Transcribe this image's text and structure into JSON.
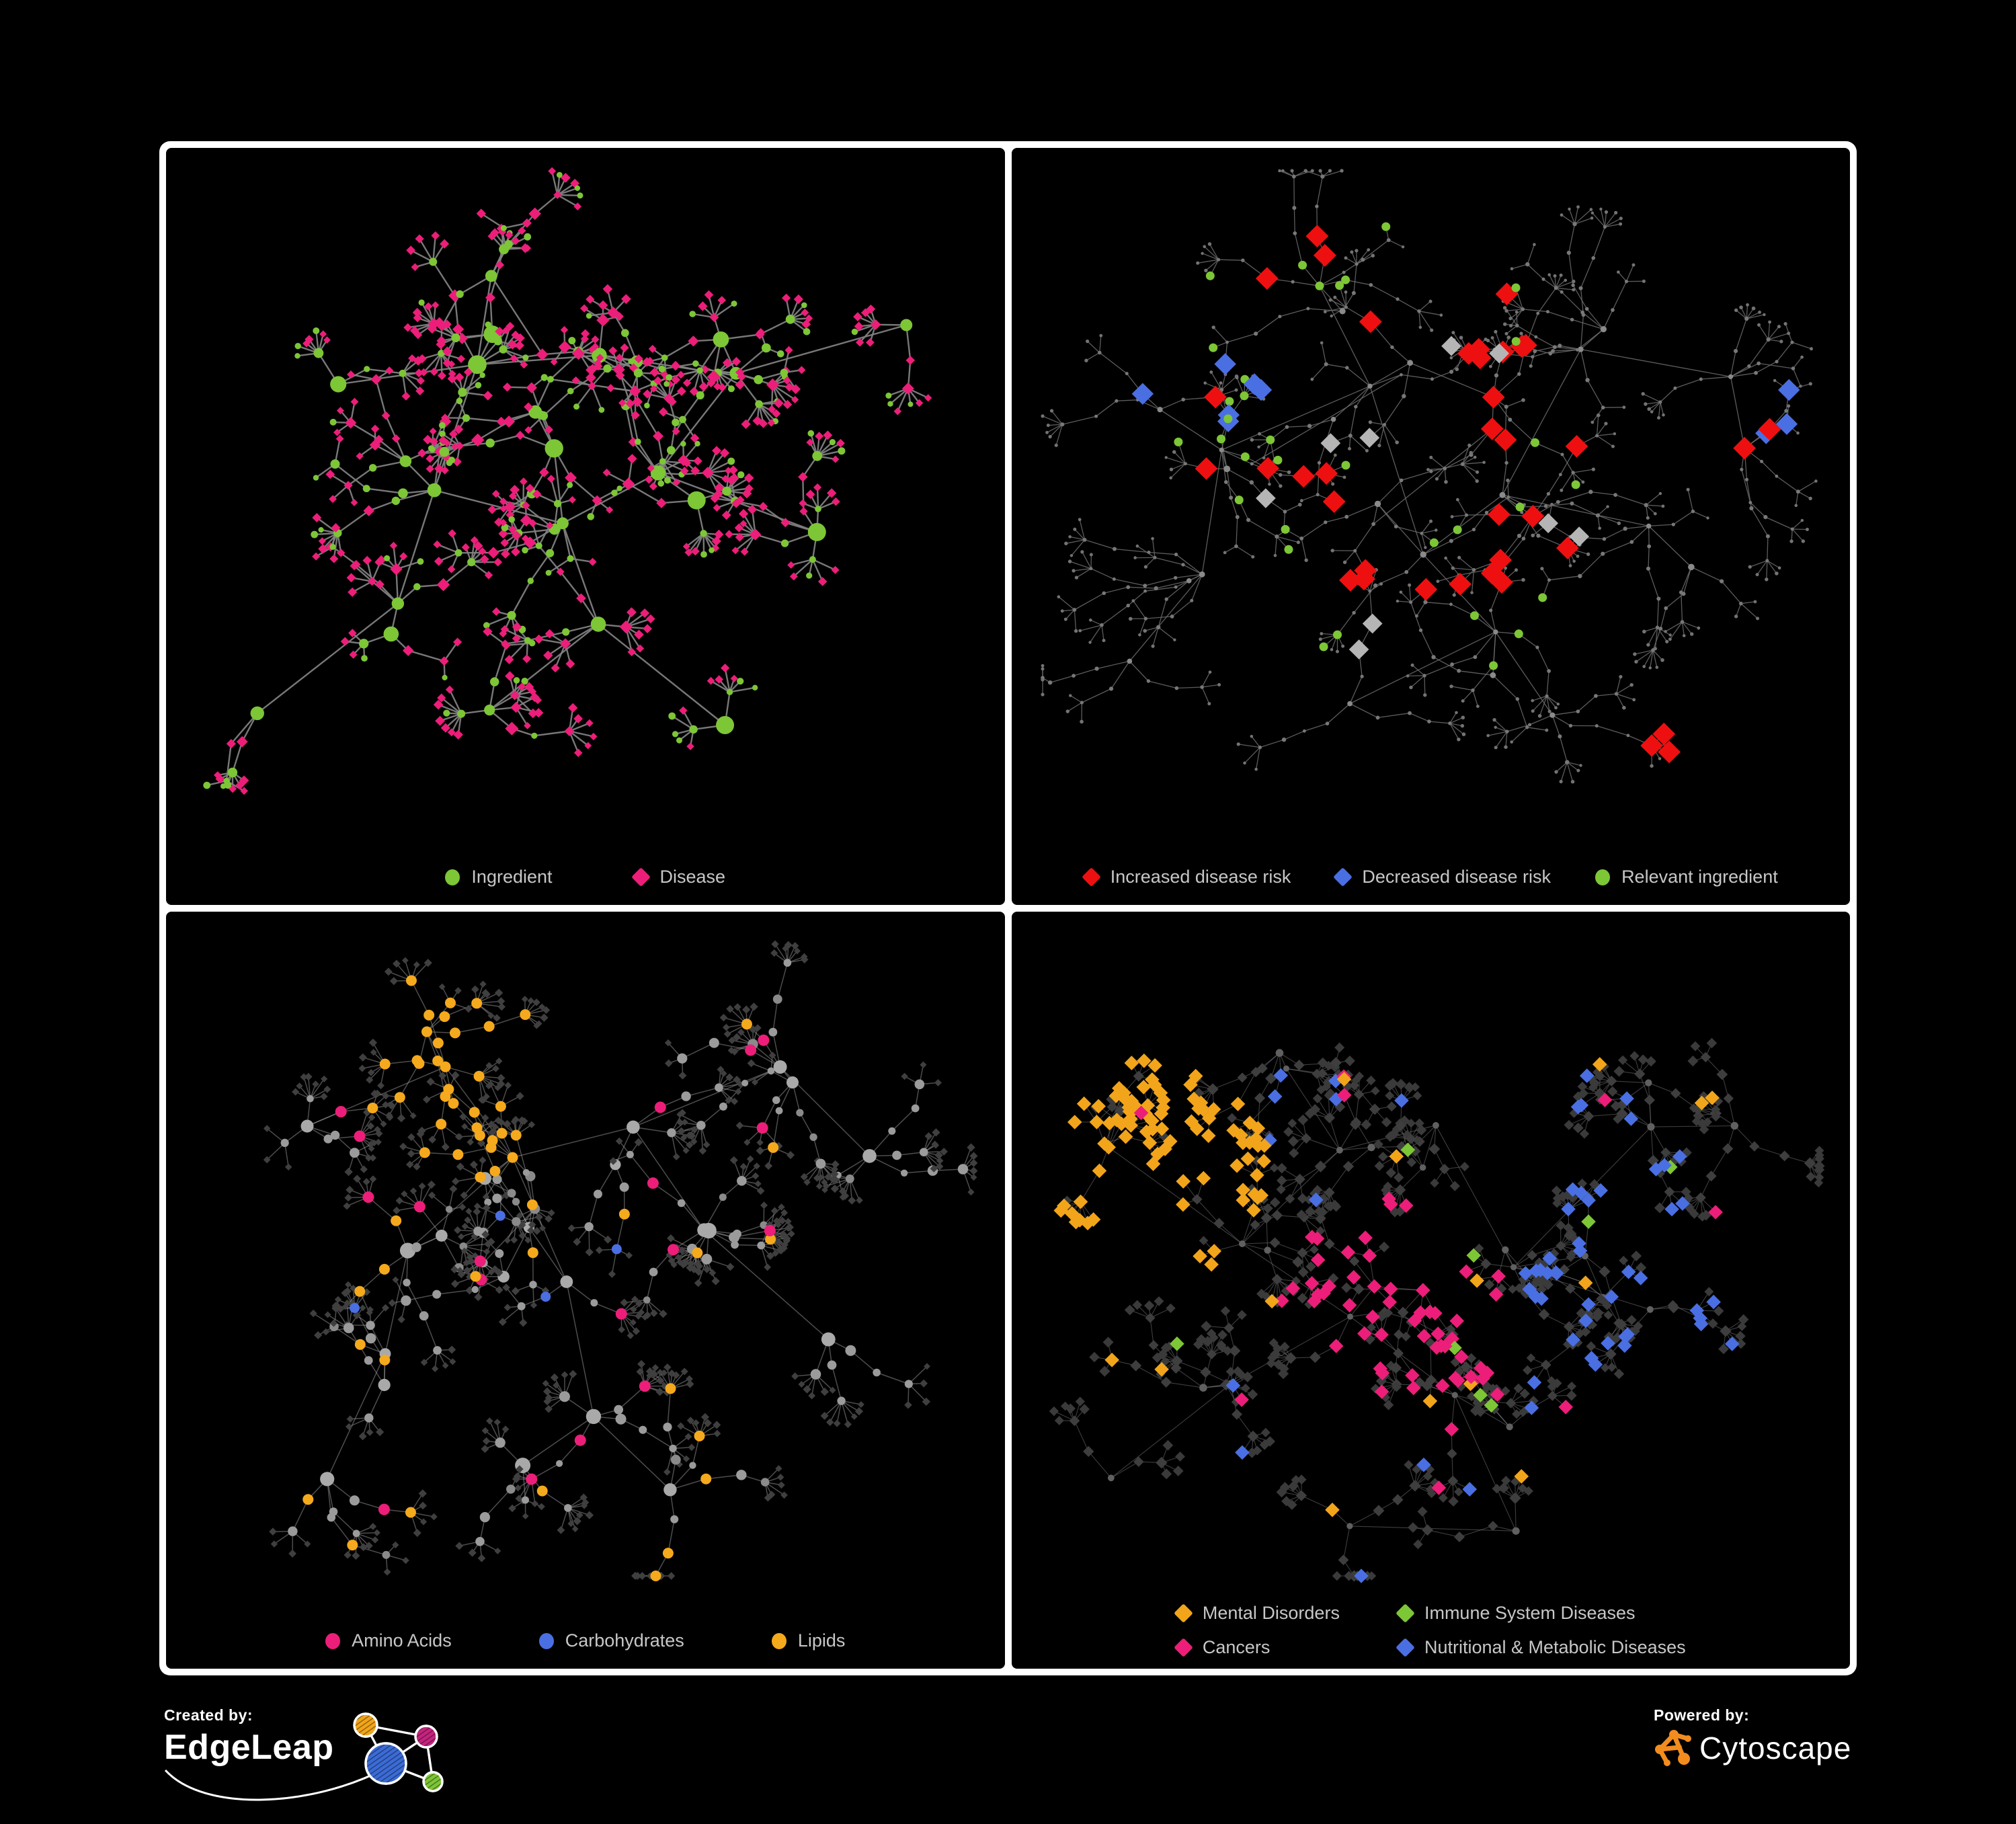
{
  "page": {
    "background": "#000000",
    "panel_border": "#ffffff"
  },
  "branding": {
    "created_by_label": "Created by:",
    "edgeleap_name": "EdgeLeap",
    "powered_by_label": "Powered by:",
    "cytoscape_name": "Cytoscape",
    "edgeleap_colors": {
      "orange": "#F2A51A",
      "magenta": "#C4247E",
      "blue": "#3B6BD6",
      "green": "#7DC636"
    },
    "cytoscape_orange": "#F28C1E"
  },
  "panels": [
    {
      "name": "ingredient-disease-network",
      "legend": {
        "columns": 1,
        "items": [
          {
            "shape": "circle",
            "color": "#7DC636",
            "label": "Ingredient"
          },
          {
            "shape": "diamond",
            "color": "#EC1E79",
            "label": "Disease"
          }
        ],
        "gap": 120
      },
      "net": {
        "seed": 7,
        "hubs": 24,
        "spread": 0.1,
        "branches": [
          2,
          5
        ],
        "chain": [
          1,
          3
        ],
        "leaves": [
          2,
          8
        ],
        "step": [
          34,
          60
        ],
        "leafLen": [
          20,
          40
        ],
        "fan": 2.4,
        "extraEdges": 30,
        "centers": [
          [
            0.42,
            0.33
          ],
          [
            0.3,
            0.45
          ],
          [
            0.52,
            0.3
          ],
          [
            0.45,
            0.52
          ],
          [
            0.25,
            0.6
          ],
          [
            0.6,
            0.45
          ],
          [
            0.7,
            0.25
          ],
          [
            0.35,
            0.2
          ],
          [
            0.55,
            0.65
          ],
          [
            0.75,
            0.55
          ],
          [
            0.2,
            0.3
          ],
          [
            0.62,
            0.75
          ],
          [
            0.85,
            0.28
          ],
          [
            0.4,
            0.75
          ],
          [
            0.15,
            0.72
          ],
          [
            0.47,
            0.4
          ]
        ],
        "sizes": {
          "hub": [
            8,
            14
          ],
          "branch": [
            4.5,
            7.5
          ],
          "leaf": [
            4,
            5.5
          ]
        },
        "edge": {
          "color": "#828282",
          "width": 2.4,
          "opacity": 0.92
        },
        "style": {
          "hub": [
            {
              "shape": "circle",
              "color": "#7DC636",
              "w": 1
            }
          ],
          "branch": [
            {
              "shape": "circle",
              "color": "#7DC636",
              "w": 0.52
            },
            {
              "shape": "diamond",
              "color": "#EC1E79",
              "w": 0.48
            }
          ],
          "leaf": [
            {
              "shape": "diamond",
              "color": "#EC1E79",
              "w": 0.74
            },
            {
              "shape": "circle",
              "color": "#7DC636",
              "w": 0.26
            }
          ]
        },
        "highlights": []
      }
    },
    {
      "name": "disease-risk-network",
      "legend": {
        "columns": 1,
        "items": [
          {
            "shape": "diamond",
            "color": "#EE1010",
            "label": "Increased disease risk"
          },
          {
            "shape": "diamond",
            "color": "#4A6FE3",
            "label": "Decreased disease risk"
          },
          {
            "shape": "circle",
            "color": "#7DC636",
            "label": "Relevant ingredient"
          }
        ],
        "gap": 66
      },
      "net": {
        "seed": 13,
        "hubs": 26,
        "spread": 0.11,
        "branches": [
          2,
          5
        ],
        "chain": [
          2,
          4
        ],
        "leaves": [
          2,
          6
        ],
        "step": [
          30,
          52
        ],
        "leafLen": [
          18,
          34
        ],
        "fan": 2.2,
        "extraEdges": 26,
        "centers": [
          [
            0.42,
            0.33
          ],
          [
            0.3,
            0.45
          ],
          [
            0.52,
            0.3
          ],
          [
            0.45,
            0.52
          ],
          [
            0.25,
            0.6
          ],
          [
            0.6,
            0.45
          ],
          [
            0.72,
            0.25
          ],
          [
            0.35,
            0.2
          ],
          [
            0.55,
            0.65
          ],
          [
            0.78,
            0.55
          ],
          [
            0.2,
            0.3
          ],
          [
            0.62,
            0.78
          ],
          [
            0.88,
            0.28
          ],
          [
            0.4,
            0.78
          ],
          [
            0.15,
            0.72
          ],
          [
            0.9,
            0.35
          ]
        ],
        "sizes": {
          "hub": [
            3.6,
            5
          ],
          "branch": [
            2.4,
            3.2
          ],
          "leaf": [
            2.2,
            2.8
          ]
        },
        "edge": {
          "color": "#6c6c6c",
          "width": 1.3,
          "opacity": 0.85
        },
        "style": {
          "hub": [
            {
              "shape": "circle",
              "color": "#8a8a8a",
              "w": 1
            }
          ],
          "branch": [
            {
              "shape": "circle",
              "color": "#787878",
              "w": 1
            }
          ],
          "leaf": [
            {
              "shape": "circle",
              "color": "#737373",
              "w": 1
            }
          ]
        },
        "highlights": [
          {
            "shape": "diamond",
            "color": "#EE1010",
            "size": 12.5,
            "count": 28,
            "region": [
              0.46,
              0.37,
              0.26
            ]
          },
          {
            "shape": "diamond",
            "color": "#EE1010",
            "size": 12.5,
            "count": 4,
            "region": [
              0.6,
              0.47,
              0.1
            ]
          },
          {
            "shape": "diamond",
            "color": "#EE1010",
            "size": 12.5,
            "count": 3,
            "region": [
              0.78,
              0.76,
              0.06
            ]
          },
          {
            "shape": "diamond",
            "color": "#EE1010",
            "size": 12.5,
            "count": 2,
            "region": [
              0.85,
              0.4,
              0.06
            ]
          },
          {
            "shape": "diamond",
            "color": "#4A6FE3",
            "size": 12,
            "count": 6,
            "region": [
              0.215,
              0.34,
              0.09
            ]
          },
          {
            "shape": "diamond",
            "color": "#4A6FE3",
            "size": 12,
            "count": 3,
            "region": [
              0.9,
              0.34,
              0.05
            ]
          },
          {
            "shape": "diamond",
            "color": "#b5b5b5",
            "size": 11,
            "count": 9,
            "region": [
              0.44,
              0.4,
              0.26
            ]
          },
          {
            "shape": "circle",
            "color": "#7DC636",
            "size": 6.5,
            "count": 24,
            "region": [
              0.42,
              0.37,
              0.27
            ]
          },
          {
            "shape": "circle",
            "color": "#7DC636",
            "size": 6.5,
            "count": 5,
            "region": [
              0.25,
              0.33,
              0.08
            ]
          },
          {
            "shape": "circle",
            "color": "#7DC636",
            "size": 6.5,
            "count": 4,
            "region": [
              0.6,
              0.64,
              0.06
            ]
          }
        ]
      }
    },
    {
      "name": "nutrient-class-network",
      "legend": {
        "columns": 1,
        "items": [
          {
            "shape": "circle",
            "color": "#EC1E79",
            "label": "Amino Acids"
          },
          {
            "shape": "circle",
            "color": "#4A6FE3",
            "label": "Carbohydrates"
          },
          {
            "shape": "circle",
            "color": "#F5A91C",
            "label": "Lipids"
          }
        ],
        "gap": 130
      },
      "net": {
        "seed": 21,
        "hubs": 24,
        "spread": 0.1,
        "branches": [
          2,
          5
        ],
        "chain": [
          1,
          3
        ],
        "leaves": [
          3,
          9
        ],
        "step": [
          34,
          58
        ],
        "leafLen": [
          20,
          38
        ],
        "fan": 2.4,
        "extraEdges": 34,
        "centers": [
          [
            0.42,
            0.33
          ],
          [
            0.3,
            0.45
          ],
          [
            0.52,
            0.3
          ],
          [
            0.45,
            0.52
          ],
          [
            0.25,
            0.6
          ],
          [
            0.6,
            0.45
          ],
          [
            0.7,
            0.25
          ],
          [
            0.36,
            0.2
          ],
          [
            0.55,
            0.65
          ],
          [
            0.75,
            0.55
          ],
          [
            0.2,
            0.3
          ],
          [
            0.62,
            0.75
          ],
          [
            0.85,
            0.28
          ],
          [
            0.4,
            0.75
          ],
          [
            0.15,
            0.72
          ],
          [
            0.47,
            0.42
          ]
        ],
        "sizes": {
          "hub": [
            8,
            12
          ],
          "branch": [
            5,
            8
          ],
          "leaf": [
            3.6,
            4.6
          ]
        },
        "edge": {
          "color": "#9a9a9a",
          "width": 1.5,
          "opacity": 0.5
        },
        "style": {
          "hub": [
            {
              "shape": "circle",
              "color": "#a9a9a9",
              "w": 1
            }
          ],
          "branch": [
            {
              "shape": "circle",
              "color": "#9b9b9b",
              "w": 0.8
            },
            {
              "shape": "circle",
              "color": "#8a8a8a",
              "w": 0.2
            }
          ],
          "leaf": [
            {
              "shape": "diamond",
              "color": "#3f3f3f",
              "w": 1
            }
          ]
        },
        "highlights": [
          {
            "types": [
              "hub",
              "branch"
            ],
            "shape": "circle",
            "color": "#F5A91C",
            "size": 8,
            "count": 40,
            "region": [
              0.36,
              0.21,
              0.13
            ]
          },
          {
            "types": [
              "hub",
              "branch"
            ],
            "shape": "circle",
            "color": "#4A6FE3",
            "size": 7.5,
            "count": 8,
            "region": [
              0.36,
              0.2,
              0.12
            ]
          },
          {
            "types": [
              "branch"
            ],
            "shape": "circle",
            "color": "#F5A91C",
            "size": 8,
            "count": 22,
            "region": [
              0.45,
              0.5,
              0.42
            ]
          },
          {
            "types": [
              "branch"
            ],
            "shape": "circle",
            "color": "#EC1E79",
            "size": 8.5,
            "count": 18,
            "region": [
              0.45,
              0.55,
              0.45
            ]
          },
          {
            "types": [
              "branch"
            ],
            "shape": "circle",
            "color": "#4A6FE3",
            "size": 7.5,
            "count": 4,
            "region": [
              0.55,
              0.6,
              0.35
            ]
          },
          {
            "types": [
              "branch"
            ],
            "shape": "circle",
            "color": "#EC1E79",
            "size": 8.5,
            "count": 2,
            "region": [
              0.52,
              0.08,
              0.1
            ]
          }
        ]
      }
    },
    {
      "name": "disease-category-network",
      "legend": {
        "columns": 2,
        "items": [
          {
            "shape": "diamond",
            "color": "#F2A51A",
            "label": "Mental Disorders"
          },
          {
            "shape": "diamond",
            "color": "#EC1E79",
            "label": "Cancers"
          },
          {
            "shape": "diamond",
            "color": "#7DC636",
            "label": "Immune System Diseases"
          },
          {
            "shape": "diamond",
            "color": "#4A6FE3",
            "label": "Nutritional & Metabolic Diseases"
          }
        ],
        "gap": 86
      },
      "net": {
        "seed": 29,
        "hubs": 28,
        "spread": 0.1,
        "branches": [
          2,
          5
        ],
        "chain": [
          1,
          3
        ],
        "leaves": [
          3,
          9
        ],
        "step": [
          32,
          56
        ],
        "leafLen": [
          18,
          34
        ],
        "fan": 2.3,
        "extraEdges": 40,
        "centers": [
          [
            0.42,
            0.35
          ],
          [
            0.3,
            0.45
          ],
          [
            0.52,
            0.3
          ],
          [
            0.45,
            0.52
          ],
          [
            0.25,
            0.6
          ],
          [
            0.6,
            0.45
          ],
          [
            0.72,
            0.25
          ],
          [
            0.35,
            0.2
          ],
          [
            0.55,
            0.68
          ],
          [
            0.75,
            0.55
          ],
          [
            0.15,
            0.33
          ],
          [
            0.62,
            0.78
          ],
          [
            0.85,
            0.3
          ],
          [
            0.4,
            0.78
          ],
          [
            0.16,
            0.72
          ],
          [
            0.73,
            0.43
          ],
          [
            0.14,
            0.34
          ],
          [
            0.46,
            0.52
          ]
        ],
        "sizes": {
          "hub": [
            4.5,
            6
          ],
          "branch": [
            5.5,
            6.5
          ],
          "leaf": [
            5,
            6
          ]
        },
        "edge": {
          "color": "#7b7b7b",
          "width": 1.1,
          "opacity": 0.5
        },
        "style": {
          "hub": [
            {
              "shape": "circle",
              "color": "#606060",
              "w": 1
            }
          ],
          "branch": [
            {
              "shape": "diamond",
              "color": "#3e3e3e",
              "w": 1
            }
          ],
          "leaf": [
            {
              "shape": "diamond",
              "color": "#3a3a3a",
              "w": 1
            }
          ]
        },
        "highlights": [
          {
            "shape": "diamond",
            "color": "#F2A51A",
            "size": 8,
            "count": 90,
            "region": [
              0.145,
              0.33,
              0.16
            ]
          },
          {
            "shape": "diamond",
            "color": "#F2A51A",
            "size": 8,
            "count": 14,
            "region": [
              0.5,
              0.55,
              0.45
            ]
          },
          {
            "shape": "diamond",
            "color": "#EC1E79",
            "size": 8,
            "count": 52,
            "region": [
              0.46,
              0.52,
              0.14
            ]
          },
          {
            "shape": "diamond",
            "color": "#EC1E79",
            "size": 8,
            "count": 12,
            "region": [
              0.55,
              0.45,
              0.45
            ]
          },
          {
            "shape": "diamond",
            "color": "#4A6FE3",
            "size": 8,
            "count": 34,
            "region": [
              0.73,
              0.43,
              0.16
            ]
          },
          {
            "shape": "diamond",
            "color": "#4A6FE3",
            "size": 8,
            "count": 24,
            "region": [
              0.5,
              0.5,
              0.48
            ]
          },
          {
            "shape": "diamond",
            "color": "#7DC636",
            "size": 8,
            "count": 8,
            "region": [
              0.45,
              0.45,
              0.42
            ]
          }
        ]
      }
    }
  ]
}
